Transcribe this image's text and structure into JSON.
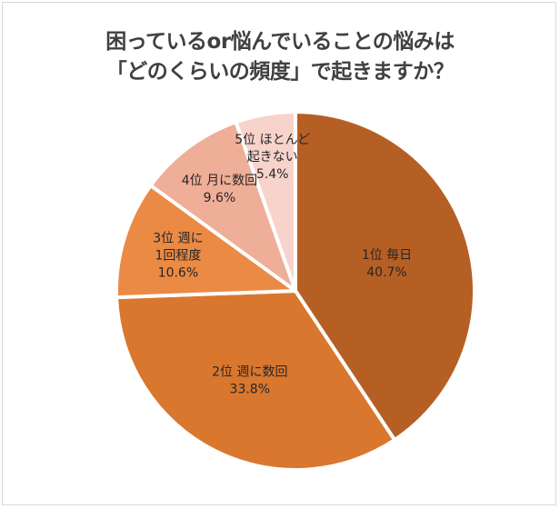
{
  "chart_data": {
    "type": "pie",
    "title_lines": [
      "困っているor悩んでいることの悩みは",
      "「どのくらいの頻度」で起きますか？"
    ],
    "slices": [
      {
        "label_lines": [
          "1位 毎日"
        ],
        "value_label": "40.7%",
        "value": 40.7,
        "color": "#B65F24"
      },
      {
        "label_lines": [
          "2位 週に数回"
        ],
        "value_label": "33.8%",
        "value": 33.8,
        "color": "#D9772F"
      },
      {
        "label_lines": [
          "3位 週に",
          "1回程度"
        ],
        "value_label": "10.6%",
        "value": 10.6,
        "color": "#EA8A45"
      },
      {
        "label_lines": [
          "4位 月に数回"
        ],
        "value_label": "9.6%",
        "value": 9.6,
        "color": "#EFAE97"
      },
      {
        "label_lines": [
          "5位 ほとんど",
          "起きない"
        ],
        "value_label": "5.4%",
        "value": 5.4,
        "color": "#F7D3CC"
      }
    ],
    "legend": "none",
    "start": "12 o'clock",
    "direction": "clockwise"
  }
}
